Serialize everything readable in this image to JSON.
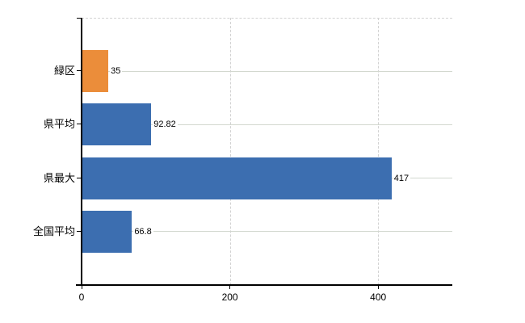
{
  "chart_data": {
    "type": "bar",
    "orientation": "horizontal",
    "title": "",
    "xlabel": "",
    "ylabel": "",
    "categories": [
      "緑区",
      "県平均",
      "県最大",
      "全国平均"
    ],
    "values": [
      35,
      92.82,
      417,
      66.8
    ],
    "value_labels": [
      "35",
      "92.82",
      "417",
      "66.8"
    ],
    "bar_colors": [
      "#eb8d3a",
      "#3c6eb0",
      "#3c6eb0",
      "#3c6eb0"
    ],
    "xlim": [
      0,
      500
    ],
    "x_ticks": [
      0,
      200,
      400
    ],
    "x_tick_labels": [
      "0",
      "200",
      "400"
    ],
    "grid": true,
    "legend_position": "none"
  },
  "colors": {
    "background": "#ffffff",
    "bar_default": "#3c6eb0",
    "bar_highlight": "#eb8d3a",
    "axis": "#000000",
    "h_gridline": "#d3d8cf",
    "v_gridline": "#d2d2d2",
    "text": "#000000"
  }
}
